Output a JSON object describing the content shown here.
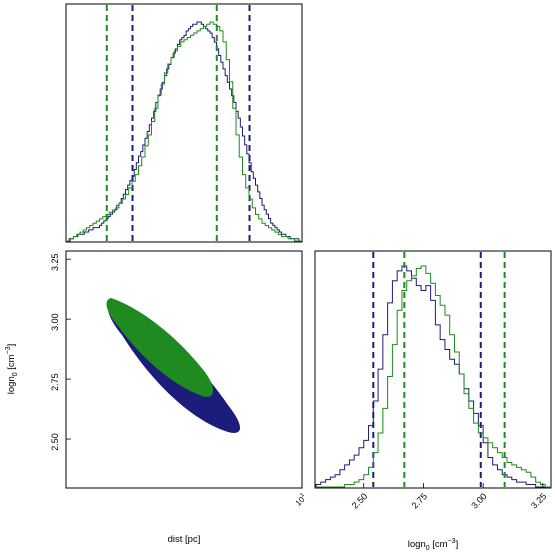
{
  "figure": {
    "bottom_left_xlabel": "dist [pc]",
    "bottom_left_ylabel": "logn",
    "bottom_left_ylabel_sub": "0",
    "bottom_left_ylabel_unit": " [cm",
    "bottom_left_ylabel_sup": "−3",
    "bottom_left_ylabel_close": "]",
    "bottom_right_xlabel": "logn",
    "bottom_right_xlabel_sub": "0",
    "bottom_right_xlabel_unit": " [cm",
    "bottom_right_xlabel_sup": "−3",
    "bottom_right_xlabel_close": "]",
    "corner_tick_label": "10",
    "corner_tick_sup": "1"
  },
  "colors": {
    "series_a": "#1c1c7a",
    "series_b": "#1f8a1f"
  },
  "chart_data": [
    {
      "type": "histogram",
      "panel": "top-left",
      "variable": "dist [pc]",
      "xscale": "log",
      "ticks_visible": false,
      "series": [
        {
          "color": "navy",
          "counts": [
            0,
            1,
            1,
            2,
            2,
            3,
            3,
            3,
            4,
            4,
            5,
            5,
            6,
            6,
            6,
            7,
            8,
            9,
            10,
            11,
            12,
            13,
            14,
            16,
            17,
            19,
            21,
            23,
            25,
            27,
            29,
            32,
            35,
            38,
            40,
            43,
            46,
            49,
            52,
            55,
            58,
            62,
            65,
            68,
            71,
            74,
            77,
            79,
            82,
            84,
            86,
            88,
            90,
            91,
            92,
            94,
            95,
            96,
            97,
            97,
            98,
            98,
            97,
            96,
            95,
            94,
            93,
            91,
            89,
            86,
            83,
            80,
            77,
            74,
            71,
            68,
            65,
            62,
            58,
            55,
            51,
            47,
            43,
            39,
            35,
            31,
            28,
            25,
            22,
            19,
            16,
            14,
            12,
            10,
            8,
            7,
            6,
            5,
            4,
            3,
            3,
            2,
            2,
            1,
            1,
            1,
            1,
            0
          ],
          "vlines_fraction_of_axis": [
            0.28,
            0.78
          ]
        },
        {
          "color": "green",
          "counts": [
            0,
            1,
            2,
            3,
            4,
            5,
            6,
            7,
            8,
            9,
            10,
            11,
            12,
            13,
            14,
            15,
            17,
            19,
            21,
            24,
            27,
            30,
            34,
            38,
            43,
            48,
            54,
            60,
            66,
            71,
            76,
            80,
            83,
            86,
            88,
            90,
            91,
            92,
            93,
            94,
            95,
            96,
            97,
            98,
            99,
            98,
            97,
            95,
            90,
            82,
            72,
            60,
            48,
            38,
            30,
            24,
            19,
            15,
            12,
            10,
            8,
            7,
            6,
            5,
            4,
            3,
            2,
            2,
            1,
            1,
            0,
            0
          ],
          "vlines_fraction_of_axis": [
            0.17,
            0.64
          ]
        }
      ]
    },
    {
      "type": "contour",
      "panel": "bottom-left",
      "xlabel": "dist [pc]",
      "ylabel": "logn0 [cm−3]",
      "xscale": "log",
      "x_ticks": [
        "10¹"
      ],
      "y_ticks": [
        2.5,
        2.75,
        3.0,
        3.25
      ],
      "ylim": [
        2.3,
        3.28
      ],
      "series": [
        {
          "color": "navy",
          "region": "elongated ellipse from upper-left to lower-right",
          "logn0_range": [
            2.53,
            3.06
          ]
        },
        {
          "color": "green",
          "region": "elongated ellipse from upper-left to middle",
          "logn0_range": [
            2.72,
            3.07
          ]
        }
      ]
    },
    {
      "type": "histogram",
      "panel": "bottom-right",
      "xlabel": "logn0 [cm−3]",
      "x_ticks": [
        2.5,
        2.75,
        3.0,
        3.25
      ],
      "xlim": [
        2.3,
        3.28
      ],
      "series": [
        {
          "color": "navy",
          "bins_x": [
            2.31,
            2.33,
            2.35,
            2.37,
            2.39,
            2.41,
            2.43,
            2.45,
            2.47,
            2.49,
            2.51,
            2.53,
            2.55,
            2.57,
            2.59,
            2.61,
            2.63,
            2.65,
            2.67,
            2.69,
            2.71,
            2.73,
            2.75,
            2.77,
            2.79,
            2.81,
            2.83,
            2.85,
            2.87,
            2.89,
            2.91,
            2.93,
            2.95,
            2.97,
            2.99,
            3.01,
            3.03,
            3.05,
            3.07,
            3.09,
            3.11,
            3.13,
            3.15,
            3.17,
            3.19,
            3.21,
            3.23,
            3.25,
            3.27
          ],
          "counts": [
            1,
            2,
            3,
            4,
            5,
            7,
            9,
            11,
            13,
            16,
            19,
            25,
            35,
            48,
            62,
            75,
            84,
            88,
            90,
            88,
            85,
            82,
            80,
            82,
            76,
            66,
            60,
            56,
            52,
            50,
            46,
            40,
            35,
            30,
            25,
            18,
            12,
            9,
            7,
            5,
            4,
            3,
            2,
            2,
            1,
            1,
            0,
            0,
            0
          ],
          "vlines": [
            2.54,
            2.99
          ]
        },
        {
          "color": "green",
          "bins_x": [
            2.31,
            2.33,
            2.35,
            2.37,
            2.39,
            2.41,
            2.43,
            2.45,
            2.47,
            2.49,
            2.51,
            2.53,
            2.55,
            2.57,
            2.59,
            2.61,
            2.63,
            2.65,
            2.67,
            2.69,
            2.71,
            2.73,
            2.75,
            2.77,
            2.79,
            2.81,
            2.83,
            2.85,
            2.87,
            2.89,
            2.91,
            2.93,
            2.95,
            2.97,
            2.99,
            3.01,
            3.03,
            3.05,
            3.07,
            3.09,
            3.11,
            3.13,
            3.15,
            3.17,
            3.19,
            3.21,
            3.23,
            3.25,
            3.27
          ],
          "counts": [
            0,
            0,
            0,
            0,
            0,
            0,
            1,
            1,
            2,
            3,
            5,
            8,
            14,
            22,
            32,
            45,
            58,
            72,
            80,
            84,
            86,
            89,
            90,
            87,
            83,
            78,
            74,
            70,
            62,
            55,
            46,
            38,
            32,
            26,
            22,
            20,
            18,
            16,
            14,
            12,
            10,
            9,
            8,
            7,
            6,
            4,
            2,
            1,
            0
          ],
          "vlines": [
            2.67,
            3.09
          ]
        }
      ]
    }
  ]
}
